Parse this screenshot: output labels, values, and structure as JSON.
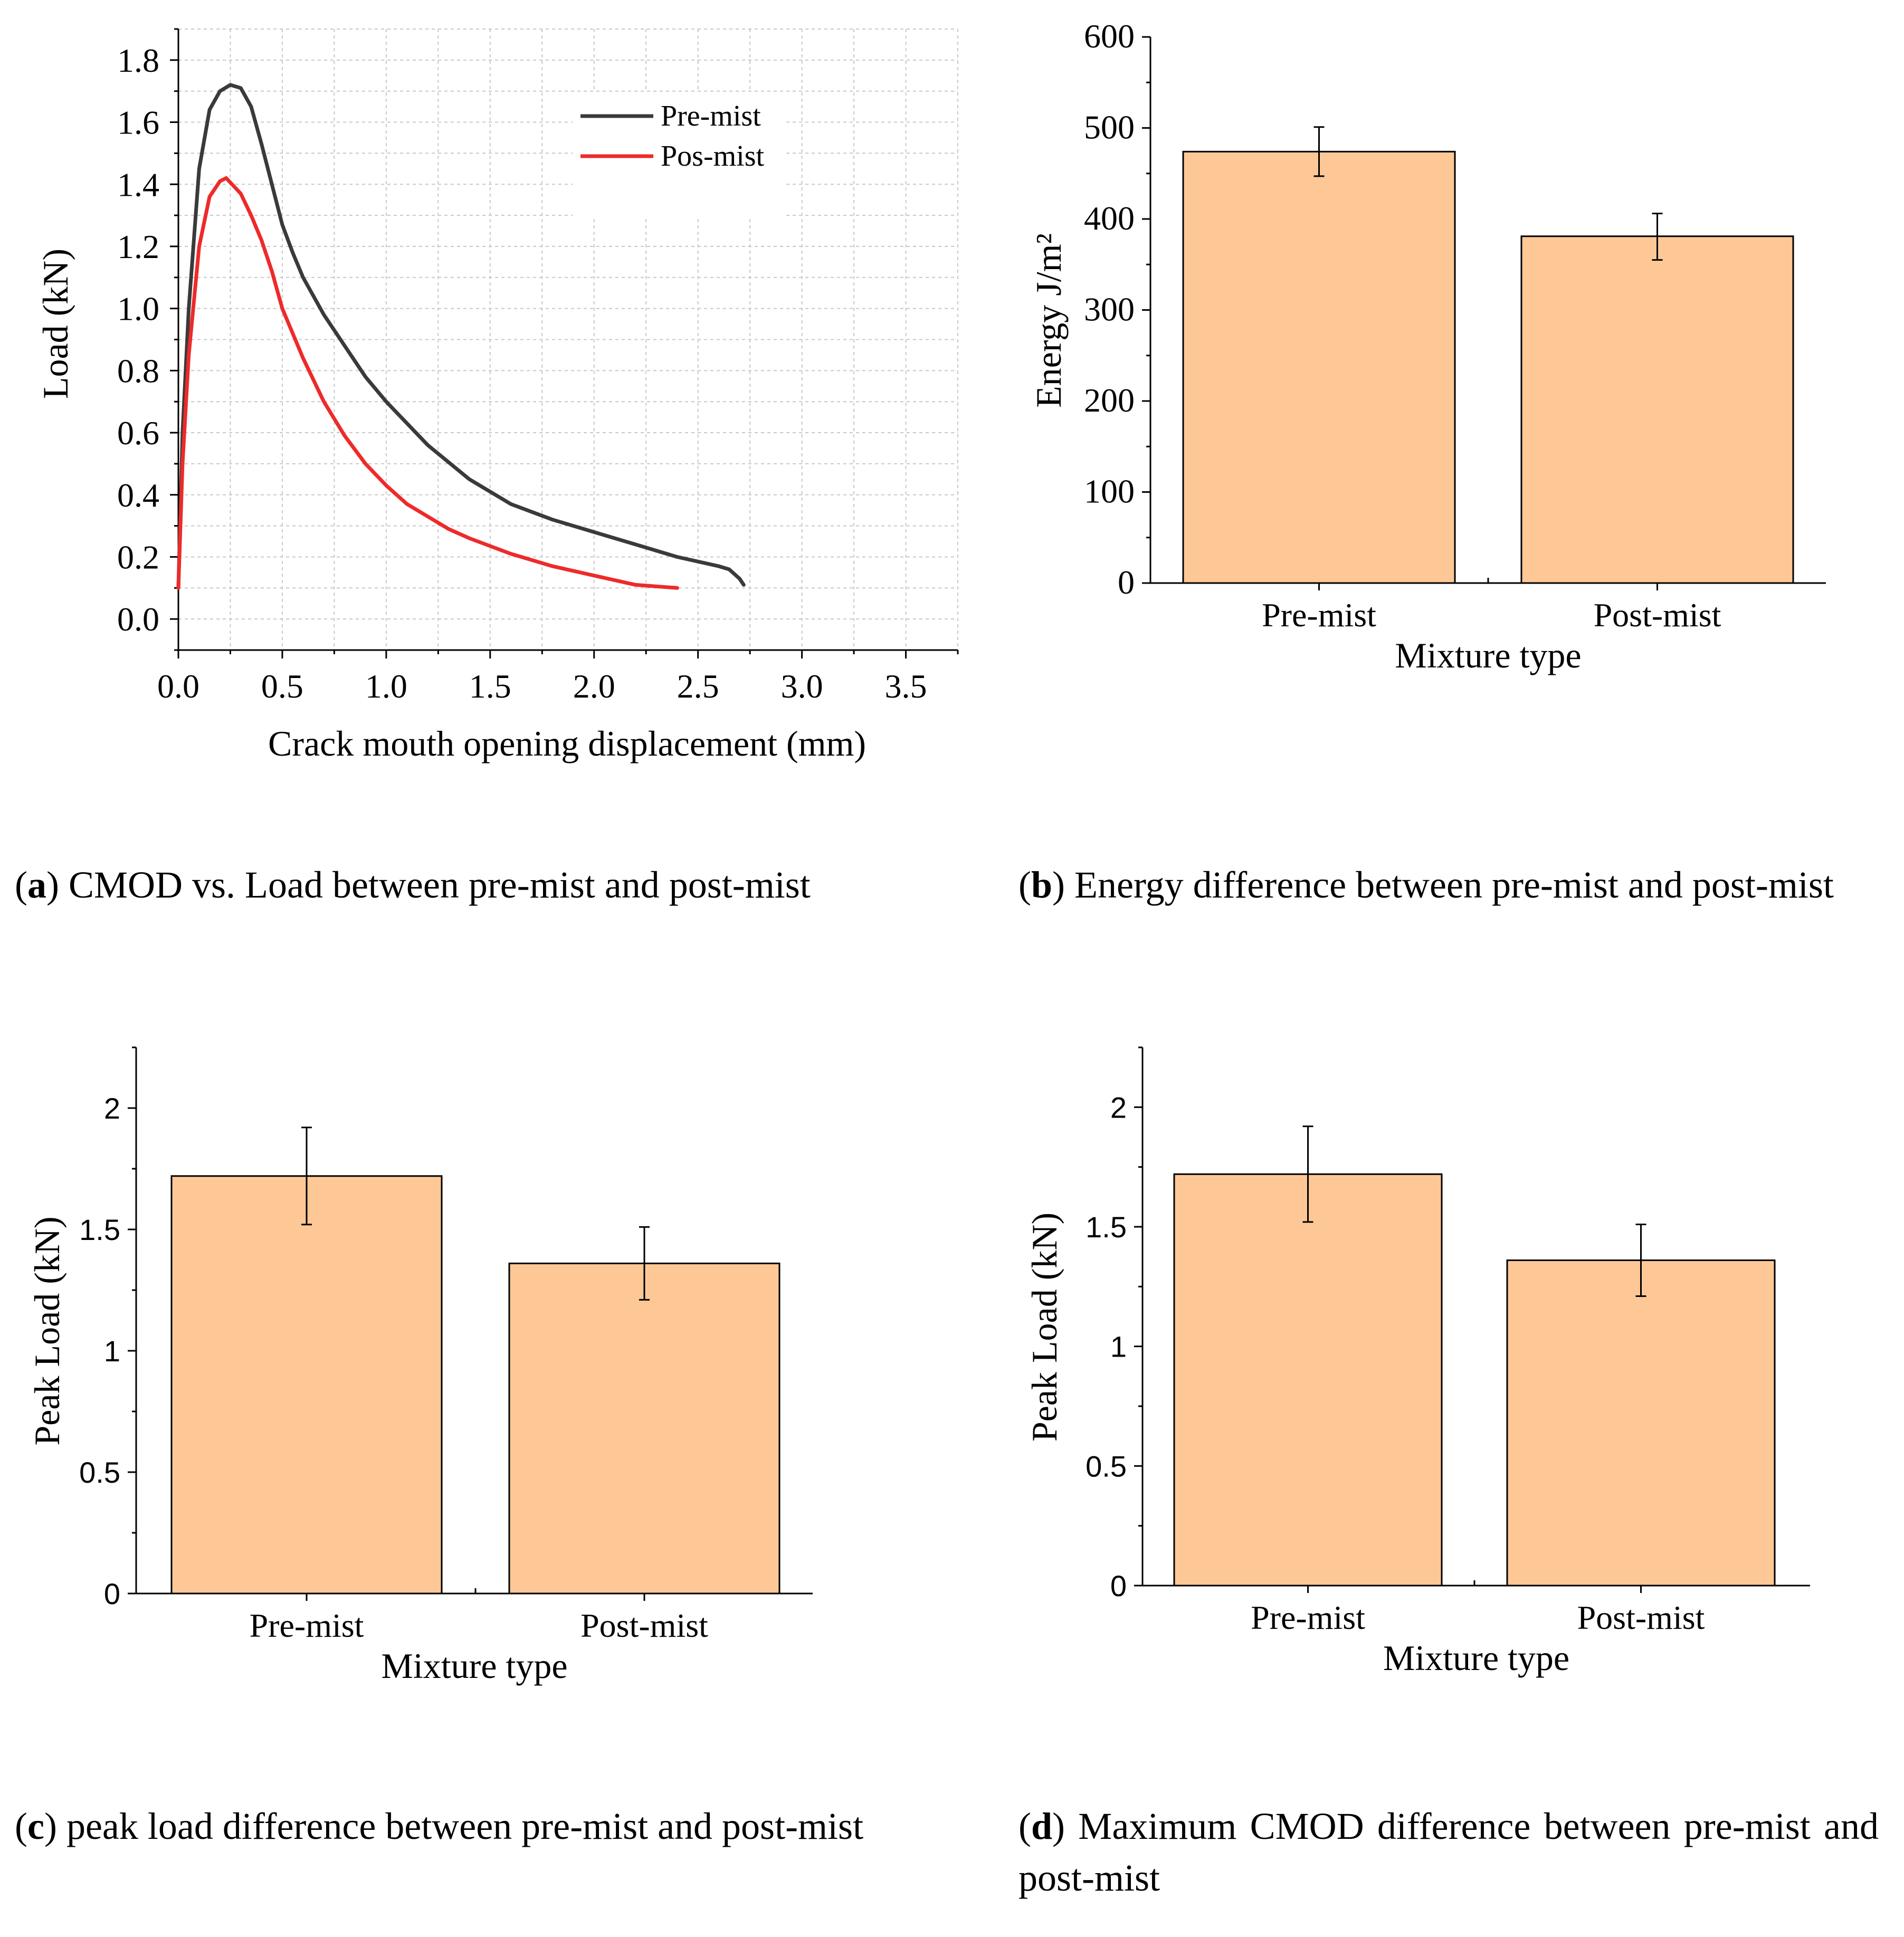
{
  "colors": {
    "bar_fill": "#FDC896",
    "pre_mist_line": "#3a3a3a",
    "pos_mist_line": "#ee2a2a",
    "axis": "#000000",
    "grid": "#c8c8c8"
  },
  "captions": {
    "a": {
      "letter": "a",
      "text": "CMOD vs. Load between pre-mist and post-mist"
    },
    "b": {
      "letter": "b",
      "text": "Energy difference between pre-mist and post-mist"
    },
    "c": {
      "letter": "c",
      "text": "peak load difference between pre-mist and post-mist"
    },
    "d": {
      "letter": "d",
      "text": "Maximum CMOD difference between pre-mist and post-mist"
    }
  },
  "chart_data": [
    {
      "id": "a",
      "type": "line",
      "xlabel": "Crack mouth opening displacement (mm)",
      "ylabel": "Load (kN)",
      "xlim": [
        0,
        3.75
      ],
      "ylim": [
        -0.1,
        1.9
      ],
      "xticks": [
        0.0,
        0.5,
        1.0,
        1.5,
        2.0,
        2.5,
        3.0,
        3.5
      ],
      "xtick_labels": [
        "0.0",
        "0.5",
        "1.0",
        "1.5",
        "2.0",
        "2.5",
        "3.0",
        "3.5"
      ],
      "yticks": [
        0.0,
        0.2,
        0.4,
        0.6,
        0.8,
        1.0,
        1.2,
        1.4,
        1.6,
        1.8
      ],
      "ytick_labels": [
        "0.0",
        "0.2",
        "0.4",
        "0.6",
        "0.8",
        "1.0",
        "1.2",
        "1.4",
        "1.6",
        "1.8"
      ],
      "grid": true,
      "legend_position": "top-right",
      "series": [
        {
          "name": "Pre-mist",
          "color": "#3a3a3a",
          "x": [
            0.0,
            0.02,
            0.05,
            0.1,
            0.15,
            0.2,
            0.25,
            0.3,
            0.35,
            0.4,
            0.45,
            0.5,
            0.55,
            0.6,
            0.7,
            0.8,
            0.9,
            1.0,
            1.2,
            1.4,
            1.6,
            1.8,
            2.0,
            2.2,
            2.4,
            2.6,
            2.65,
            2.7,
            2.72
          ],
          "y": [
            0.1,
            0.6,
            1.0,
            1.45,
            1.64,
            1.7,
            1.72,
            1.71,
            1.65,
            1.53,
            1.4,
            1.27,
            1.18,
            1.1,
            0.98,
            0.88,
            0.78,
            0.7,
            0.56,
            0.45,
            0.37,
            0.32,
            0.28,
            0.24,
            0.2,
            0.17,
            0.16,
            0.13,
            0.11
          ]
        },
        {
          "name": "Pos-mist",
          "color": "#ee2a2a",
          "x": [
            0.0,
            0.02,
            0.05,
            0.1,
            0.15,
            0.2,
            0.23,
            0.3,
            0.35,
            0.4,
            0.45,
            0.5,
            0.55,
            0.6,
            0.7,
            0.8,
            0.9,
            1.0,
            1.1,
            1.2,
            1.3,
            1.4,
            1.6,
            1.8,
            2.0,
            2.2,
            2.4
          ],
          "y": [
            0.1,
            0.5,
            0.85,
            1.2,
            1.36,
            1.41,
            1.42,
            1.37,
            1.3,
            1.22,
            1.12,
            1.0,
            0.92,
            0.84,
            0.7,
            0.59,
            0.5,
            0.43,
            0.37,
            0.33,
            0.29,
            0.26,
            0.21,
            0.17,
            0.14,
            0.11,
            0.1
          ]
        }
      ]
    },
    {
      "id": "b",
      "type": "bar",
      "xlabel": "Mixture  type",
      "ylabel": "Energy J/m²",
      "categories": [
        "Pre-mist",
        "Post-mist"
      ],
      "values": [
        474,
        381
      ],
      "error_low": [
        447,
        355
      ],
      "error_high": [
        501,
        406
      ],
      "ylim": [
        0,
        600
      ],
      "yticks": [
        0,
        100,
        200,
        300,
        400,
        500,
        600
      ],
      "ytick_labels": [
        "0",
        "100",
        "200",
        "300",
        "400",
        "500",
        "600"
      ],
      "grid": false
    },
    {
      "id": "c",
      "type": "bar",
      "xlabel": "Mixture  type",
      "ylabel": "Peak Load (kN)",
      "categories": [
        "Pre-mist",
        "Post-mist"
      ],
      "values": [
        1.72,
        1.36
      ],
      "error_low": [
        1.52,
        1.21
      ],
      "error_high": [
        1.92,
        1.51
      ],
      "ylim": [
        0,
        2.25
      ],
      "yticks": [
        0,
        0.5,
        1,
        1.5,
        2
      ],
      "ytick_labels": [
        "0",
        "0.5",
        "1",
        "1.5",
        "2"
      ],
      "grid": false
    },
    {
      "id": "d",
      "type": "bar",
      "xlabel": "Mixture  type",
      "ylabel": "Peak Load (kN)",
      "categories": [
        "Pre-mist",
        "Post-mist"
      ],
      "values": [
        1.72,
        1.36
      ],
      "error_low": [
        1.52,
        1.21
      ],
      "error_high": [
        1.92,
        1.51
      ],
      "ylim": [
        0,
        2.25
      ],
      "yticks": [
        0,
        0.5,
        1,
        1.5,
        2
      ],
      "ytick_labels": [
        "0",
        "0.5",
        "1",
        "1.5",
        "2"
      ],
      "grid": false
    }
  ]
}
